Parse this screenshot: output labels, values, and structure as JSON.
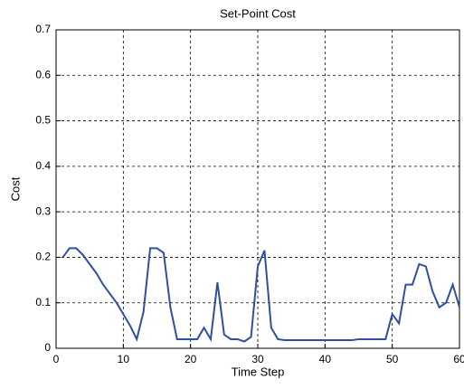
{
  "chart_data": {
    "type": "line",
    "title": "Set-Point Cost",
    "xlabel": "Time Step",
    "ylabel": "Cost",
    "x": [
      1,
      2,
      3,
      4,
      5,
      6,
      7,
      8,
      9,
      10,
      11,
      12,
      13,
      14,
      15,
      16,
      17,
      18,
      19,
      20,
      21,
      22,
      23,
      24,
      25,
      26,
      27,
      28,
      29,
      30,
      31,
      32,
      33,
      34,
      35,
      36,
      37,
      38,
      39,
      40,
      41,
      42,
      43,
      44,
      45,
      46,
      47,
      48,
      49,
      50,
      51,
      52,
      53,
      54,
      55,
      56,
      57,
      58,
      59,
      60
    ],
    "series": [
      {
        "name": "Cost",
        "color": "#2f4fa0",
        "values": [
          0.2,
          0.22,
          0.22,
          0.205,
          0.185,
          0.165,
          0.14,
          0.12,
          0.1,
          0.075,
          0.05,
          0.02,
          0.08,
          0.22,
          0.22,
          0.21,
          0.09,
          0.02,
          0.02,
          0.02,
          0.02,
          0.045,
          0.02,
          0.145,
          0.03,
          0.02,
          0.02,
          0.015,
          0.025,
          0.18,
          0.215,
          0.045,
          0.02,
          0.018,
          0.018,
          0.018,
          0.018,
          0.018,
          0.018,
          0.018,
          0.018,
          0.018,
          0.018,
          0.018,
          0.02,
          0.02,
          0.02,
          0.02,
          0.02,
          0.075,
          0.055,
          0.14,
          0.14,
          0.185,
          0.18,
          0.125,
          0.09,
          0.1,
          0.14,
          0.09
        ]
      }
    ],
    "xlim": [
      0,
      60
    ],
    "xticks": [
      0,
      10,
      20,
      30,
      40,
      50,
      60
    ],
    "ylim": [
      0,
      0.7
    ],
    "yticks": [
      0,
      0.1,
      0.2,
      0.3,
      0.4,
      0.5,
      0.6,
      0.7
    ],
    "grid": true
  }
}
